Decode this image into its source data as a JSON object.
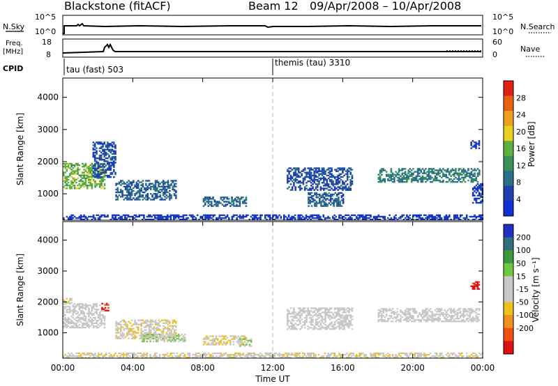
{
  "header": {
    "title": "Blackstone (fitACF)",
    "beam": "Beam 12",
    "date_range": "09/Apr/2008 – 10/Apr/2008"
  },
  "summary_panels": {
    "nsky": {
      "label": "N.Sky",
      "ticks": [
        "10^5",
        "10^0"
      ],
      "right_label": "N.Search",
      "right_ticks": [
        "10^5",
        "10^0"
      ]
    },
    "freq": {
      "label_line1": "Freq.",
      "label_line2": "[MHz]",
      "ticks": [
        "18",
        "8"
      ],
      "right_label": "Nave",
      "right_ticks": [
        "60",
        "0"
      ]
    },
    "cpid": {
      "label": "CPID",
      "segments": [
        "tau (fast) 503",
        "themis (tau) 3310"
      ]
    }
  },
  "x_axis": {
    "label": "Time UT",
    "ticks": [
      "00:00",
      "04:00",
      "08:00",
      "12:00",
      "16:00",
      "20:00",
      "00:00"
    ]
  },
  "colors": {
    "power_scale": [
      "#1030d8",
      "#2040b0",
      "#2a6f8a",
      "#3a8f5a",
      "#60b040",
      "#e8d020",
      "#f0a020",
      "#e86010",
      "#e02010"
    ],
    "velocity_scale": [
      "#2030c0",
      "#2f6f7f",
      "#3a9a3a",
      "#70c840",
      "#c8c8c8",
      "#c8c8c8",
      "#f0c020",
      "#f09020",
      "#f05010",
      "#e01010"
    ]
  },
  "chart_data": [
    {
      "type": "heatmap",
      "name": "power",
      "ylabel": "Slant Range [km]",
      "ylim": [
        180,
        4600
      ],
      "y_ticks": [
        "1000",
        "2000",
        "3000",
        "4000"
      ],
      "xlim_hours": [
        0,
        24
      ],
      "colorbar": {
        "label": "Power [dB]",
        "range": [
          0,
          32
        ],
        "ticks": [
          "4",
          "8",
          "12",
          "16",
          "20",
          "24",
          "28"
        ]
      },
      "regions": [
        {
          "t0": 0.0,
          "t1": 2.4,
          "r0": 1150,
          "r1": 1950,
          "value": 16
        },
        {
          "t0": 1.7,
          "t1": 3.0,
          "r0": 1500,
          "r1": 2600,
          "value": 6
        },
        {
          "t0": 3.0,
          "t1": 6.5,
          "r0": 800,
          "r1": 1400,
          "value": 8
        },
        {
          "t0": 8.0,
          "t1": 10.5,
          "r0": 600,
          "r1": 900,
          "value": 8
        },
        {
          "t0": 12.8,
          "t1": 16.5,
          "r0": 1100,
          "r1": 1800,
          "value": 6
        },
        {
          "t0": 14.0,
          "t1": 16.0,
          "r0": 600,
          "r1": 1050,
          "value": 8
        },
        {
          "t0": 18.0,
          "t1": 23.8,
          "r0": 1350,
          "r1": 1800,
          "value": 10
        },
        {
          "t0": 23.3,
          "t1": 23.8,
          "r0": 2400,
          "r1": 2650,
          "value": 4
        },
        {
          "t0": 23.4,
          "t1": 24.0,
          "r0": 700,
          "r1": 1300,
          "value": 4
        },
        {
          "t0": 0.0,
          "t1": 24.0,
          "r0": 180,
          "r1": 330,
          "value": 4
        }
      ]
    },
    {
      "type": "heatmap",
      "name": "velocity",
      "ylabel": "Slant Range [km]",
      "ylim": [
        180,
        4600
      ],
      "y_ticks": [
        "1000",
        "2000",
        "3000",
        "4000"
      ],
      "xlim_hours": [
        0,
        24
      ],
      "colorbar": {
        "label": "Velocity [m s⁻¹]",
        "range": [
          -250,
          250
        ],
        "ticks": [
          "200",
          "100",
          "50",
          "15",
          "-15",
          "-50",
          "-100",
          "-200"
        ]
      },
      "regions": [
        {
          "t0": 0.0,
          "t1": 2.4,
          "r0": 1150,
          "r1": 1950,
          "value": 0
        },
        {
          "t0": 0.0,
          "t1": 0.5,
          "r0": 1950,
          "r1": 2100,
          "value": -60
        },
        {
          "t0": 2.2,
          "t1": 2.6,
          "r0": 1700,
          "r1": 1950,
          "value": -220
        },
        {
          "t0": 3.0,
          "t1": 6.5,
          "r0": 800,
          "r1": 1400,
          "value": -30
        },
        {
          "t0": 4.5,
          "t1": 7.0,
          "r0": 700,
          "r1": 950,
          "value": 40
        },
        {
          "t0": 8.0,
          "t1": 10.5,
          "r0": 600,
          "r1": 900,
          "value": -40
        },
        {
          "t0": 10.0,
          "t1": 10.8,
          "r0": 550,
          "r1": 800,
          "value": 40
        },
        {
          "t0": 12.8,
          "t1": 16.5,
          "r0": 1100,
          "r1": 1800,
          "value": 0
        },
        {
          "t0": 18.0,
          "t1": 23.8,
          "r0": 1350,
          "r1": 1800,
          "value": 0
        },
        {
          "t0": 23.3,
          "t1": 23.8,
          "r0": 2400,
          "r1": 2650,
          "value": -220
        },
        {
          "t0": 0.0,
          "t1": 24.0,
          "r0": 180,
          "r1": 330,
          "value": -30
        }
      ]
    }
  ]
}
